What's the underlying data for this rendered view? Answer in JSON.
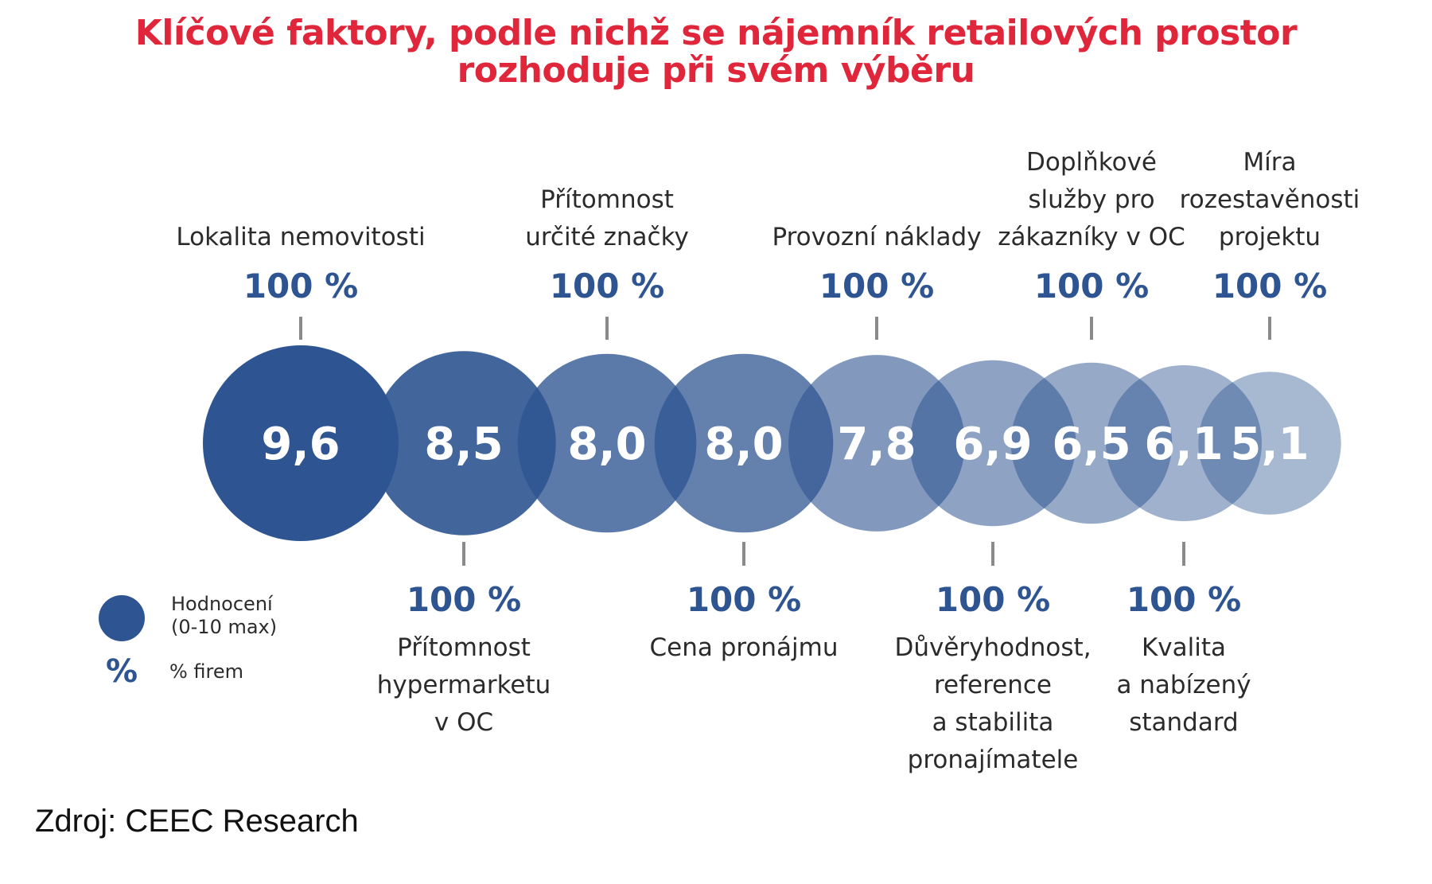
{
  "title_lines": [
    "Klíčové faktory, podle nichž se nájemník retailových prostor",
    "rozhoduje při svém výběru"
  ],
  "colors": {
    "title": "#e0263a",
    "bubble": "#2e5591",
    "pct": "#2e5591"
  },
  "chart_data": {
    "type": "bubble",
    "value_range": [
      0,
      10
    ],
    "factors": [
      {
        "label_lines": [
          "Lokalita nemovitosti"
        ],
        "value": "9,6",
        "num": 9.6,
        "share": "100 %",
        "position": "top"
      },
      {
        "label_lines": [
          "Přítomnost",
          "hypermarketu",
          "v OC"
        ],
        "value": "8,5",
        "num": 8.5,
        "share": "100 %",
        "position": "bottom"
      },
      {
        "label_lines": [
          "Přítomnost",
          "určité značky"
        ],
        "value": "8,0",
        "num": 8.0,
        "share": "100 %",
        "position": "top"
      },
      {
        "label_lines": [
          "Cena pronájmu"
        ],
        "value": "8,0",
        "num": 8.0,
        "share": "100 %",
        "position": "bottom"
      },
      {
        "label_lines": [
          "Provozní náklady"
        ],
        "value": "7,8",
        "num": 7.8,
        "share": "100 %",
        "position": "top"
      },
      {
        "label_lines": [
          "Důvěryhodnost,",
          "reference",
          "a stabilita",
          "pronajímatele"
        ],
        "value": "6,9",
        "num": 6.9,
        "share": "100 %",
        "position": "bottom"
      },
      {
        "label_lines": [
          "Doplňkové",
          "služby pro",
          "zákazníky v OC"
        ],
        "value": "6,5",
        "num": 6.5,
        "share": "100 %",
        "position": "top"
      },
      {
        "label_lines": [
          "Kvalita",
          "a nabízený",
          "standard"
        ],
        "value": "6,1",
        "num": 6.1,
        "share": "100 %",
        "position": "bottom"
      },
      {
        "label_lines": [
          "Míra",
          "rozestavěnosti",
          "projektu"
        ],
        "value": "5,1",
        "num": 5.1,
        "share": "100 %",
        "position": "top"
      }
    ]
  },
  "legend": {
    "rating_lines": [
      "Hodnocení",
      "(0-10 max)"
    ],
    "pct_symbol": "%",
    "pct_text": "% firem"
  },
  "source": "Zdroj: CEEC Research"
}
